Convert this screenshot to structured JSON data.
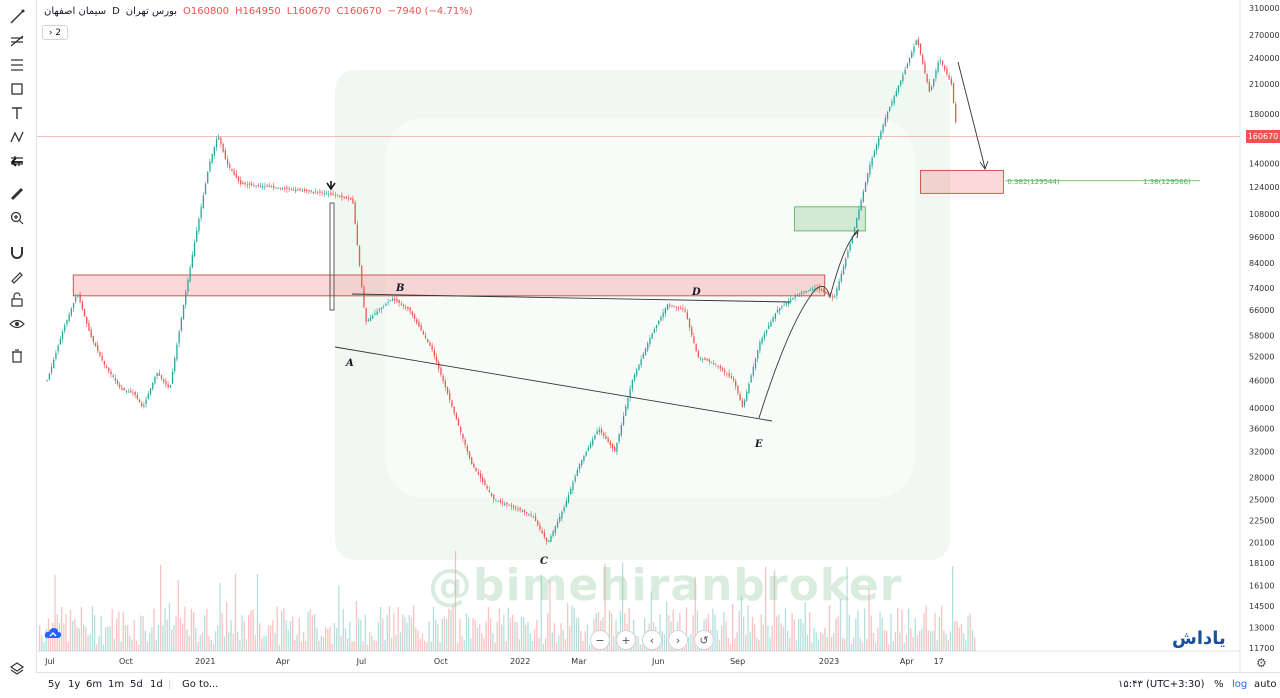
{
  "legend": {
    "symbol": "سیمان اصفهان",
    "interval": "D",
    "exchange": "بورس تهران",
    "open": "O160800",
    "high": "H164950",
    "low": "L160670",
    "close": "C160670",
    "change": "−7940 (−4.71%)",
    "collapse_label": "2"
  },
  "toolbar": [
    {
      "icon": "cursor-cross-icon"
    },
    {
      "icon": "trend-line-icon"
    },
    {
      "icon": "fib-tool-icon"
    },
    {
      "icon": "rectangle-tool-icon"
    },
    {
      "icon": "text-tool-icon"
    },
    {
      "icon": "pattern-tool-icon"
    },
    {
      "icon": "forecast-tool-icon"
    },
    {
      "icon": "back-arrow-icon"
    },
    {
      "icon": "ruler-icon"
    },
    {
      "icon": "zoom-in-icon"
    },
    {
      "icon": "magnet-icon"
    },
    {
      "icon": "pencil-lock-icon"
    },
    {
      "icon": "lock-icon"
    },
    {
      "icon": "eye-icon"
    },
    {
      "icon": "trash-icon"
    }
  ],
  "bottom_bar": {
    "ranges": [
      "5y",
      "1y",
      "6m",
      "1m",
      "5d",
      "1d"
    ],
    "goto": "Go to...",
    "time": "۱۵:۴۳ (UTC+3:30)",
    "percent": "%",
    "log": "log",
    "auto": "auto"
  },
  "brand": "یاداش",
  "watermark": "@bimehiranbroker",
  "last_price": "160670",
  "colors": {
    "up": "#26a69a",
    "down": "#ef5350",
    "zone_red": "#f4c7c8",
    "zone_green": "#cfe9cf",
    "accent": "#2962ff"
  },
  "chart_data": {
    "type": "candlestick",
    "scale": "log",
    "y_ticks": [
      11700,
      13000,
      14500,
      16100,
      18100,
      20100,
      22500,
      25000,
      28000,
      32000,
      36000,
      40000,
      46000,
      52000,
      58000,
      66000,
      74000,
      84000,
      96000,
      108000,
      124000,
      140000,
      160000,
      180000,
      210000,
      240000,
      270000,
      310000
    ],
    "x_labels": [
      "Jul",
      "Oct",
      "2021",
      "Apr",
      "Jul",
      "Oct",
      "2022",
      "Mar",
      "Jun",
      "Sep",
      "2023",
      "Apr",
      "17"
    ],
    "close_path": [
      {
        "d": "2020-07-01",
        "p": 46000
      },
      {
        "d": "2020-07-20",
        "p": 60000
      },
      {
        "d": "2020-08-05",
        "p": 72000
      },
      {
        "d": "2020-08-20",
        "p": 58000
      },
      {
        "d": "2020-09-05",
        "p": 50000
      },
      {
        "d": "2020-09-25",
        "p": 44000
      },
      {
        "d": "2020-10-10",
        "p": 43000
      },
      {
        "d": "2020-10-20",
        "p": 40000
      },
      {
        "d": "2020-11-05",
        "p": 48000
      },
      {
        "d": "2020-11-20",
        "p": 44000
      },
      {
        "d": "2020-12-05",
        "p": 66000
      },
      {
        "d": "2020-12-20",
        "p": 96000
      },
      {
        "d": "2021-01-05",
        "p": 140000
      },
      {
        "d": "2021-01-15",
        "p": 162000
      },
      {
        "d": "2021-01-25",
        "p": 140000
      },
      {
        "d": "2021-02-10",
        "p": 126000
      },
      {
        "d": "2021-05-20",
        "p": 120000
      },
      {
        "d": "2021-06-20",
        "p": 116000
      },
      {
        "d": "2021-07-05",
        "p": 62000
      },
      {
        "d": "2021-07-20",
        "p": 66000
      },
      {
        "d": "2021-08-05",
        "p": 70000
      },
      {
        "d": "2021-08-25",
        "p": 66000
      },
      {
        "d": "2021-09-20",
        "p": 54000
      },
      {
        "d": "2021-10-10",
        "p": 42000
      },
      {
        "d": "2021-11-05",
        "p": 30000
      },
      {
        "d": "2021-12-01",
        "p": 25000
      },
      {
        "d": "2021-12-25",
        "p": 24000
      },
      {
        "d": "2022-01-15",
        "p": 23000
      },
      {
        "d": "2022-02-01",
        "p": 20000
      },
      {
        "d": "2022-02-20",
        "p": 24000
      },
      {
        "d": "2022-03-10",
        "p": 30000
      },
      {
        "d": "2022-04-01",
        "p": 36000
      },
      {
        "d": "2022-04-20",
        "p": 32000
      },
      {
        "d": "2022-05-10",
        "p": 46000
      },
      {
        "d": "2022-06-01",
        "p": 58000
      },
      {
        "d": "2022-06-20",
        "p": 68000
      },
      {
        "d": "2022-07-10",
        "p": 66000
      },
      {
        "d": "2022-07-25",
        "p": 52000
      },
      {
        "d": "2022-08-15",
        "p": 50000
      },
      {
        "d": "2022-09-05",
        "p": 46000
      },
      {
        "d": "2022-09-15",
        "p": 40000
      },
      {
        "d": "2022-10-05",
        "p": 56000
      },
      {
        "d": "2022-10-25",
        "p": 66000
      },
      {
        "d": "2022-11-20",
        "p": 72000
      },
      {
        "d": "2022-12-10",
        "p": 74000
      },
      {
        "d": "2022-12-30",
        "p": 70000
      },
      {
        "d": "2023-01-20",
        "p": 96000
      },
      {
        "d": "2023-02-10",
        "p": 140000
      },
      {
        "d": "2023-03-01",
        "p": 180000
      },
      {
        "d": "2023-03-20",
        "p": 220000
      },
      {
        "d": "2023-04-05",
        "p": 265000
      },
      {
        "d": "2023-04-20",
        "p": 200000
      },
      {
        "d": "2023-05-01",
        "p": 240000
      },
      {
        "d": "2023-05-15",
        "p": 210000
      },
      {
        "d": "2023-05-22",
        "p": 160670
      }
    ],
    "annotations": {
      "points": [
        {
          "label": "A",
          "d": "2021-07-05",
          "p": 56000
        },
        {
          "label": "B",
          "d": "2021-08-25",
          "p": 74000
        },
        {
          "label": "C",
          "d": "2022-02-01",
          "p": 19000
        },
        {
          "label": "D",
          "d": "2022-07-20",
          "p": 72000
        },
        {
          "label": "E",
          "d": "2022-09-15",
          "p": 36000
        }
      ],
      "fib_label_1": "0.382(129544)",
      "fib_label_2": "1.38(129566)",
      "red_zone": {
        "from": "2020-08-01",
        "to": "2022-12-20",
        "p_low": 71000,
        "p_high": 79000
      },
      "green_zone": {
        "from": "2022-11-15",
        "to": "2023-02-05",
        "p_low": 99000,
        "p_high": 112000
      },
      "target_zone": {
        "from": "2023-04-10",
        "to": "2023-07-15",
        "p_low": 120000,
        "p_high": 135000
      }
    }
  }
}
